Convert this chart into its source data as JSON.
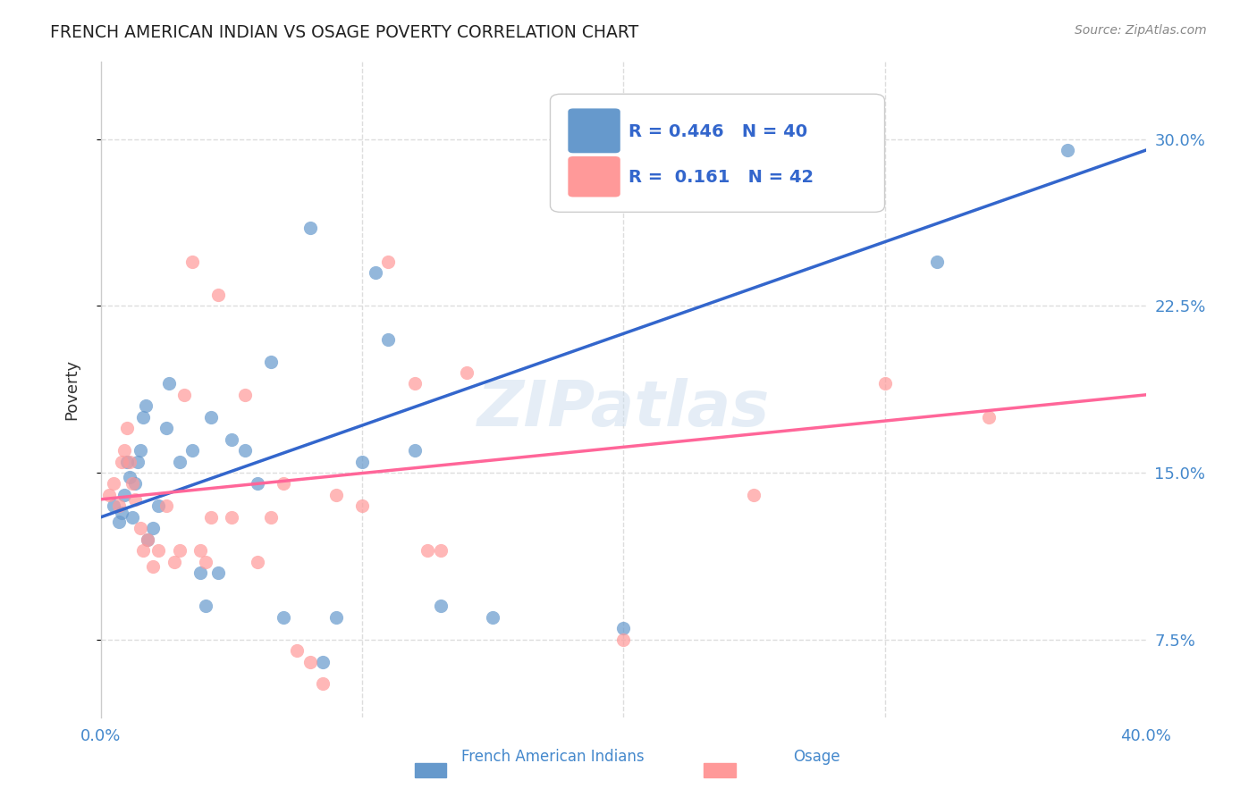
{
  "title": "FRENCH AMERICAN INDIAN VS OSAGE POVERTY CORRELATION CHART",
  "source": "Source: ZipAtlas.com",
  "ylabel": "Poverty",
  "xlim": [
    0.0,
    0.4
  ],
  "ylim": [
    0.04,
    0.335
  ],
  "yticks": [
    0.075,
    0.15,
    0.225,
    0.3
  ],
  "ytick_labels": [
    "7.5%",
    "15.0%",
    "22.5%",
    "30.0%"
  ],
  "legend_r_blue": "0.446",
  "legend_n_blue": "40",
  "legend_r_pink": "0.161",
  "legend_n_pink": "42",
  "legend_label_blue": "French American Indians",
  "legend_label_pink": "Osage",
  "blue_color": "#6699CC",
  "pink_color": "#FF9999",
  "line_blue": "#3366CC",
  "line_pink": "#FF6699",
  "watermark": "ZIPatlas",
  "blue_points": [
    [
      0.005,
      0.135
    ],
    [
      0.007,
      0.128
    ],
    [
      0.008,
      0.132
    ],
    [
      0.009,
      0.14
    ],
    [
      0.01,
      0.155
    ],
    [
      0.011,
      0.148
    ],
    [
      0.012,
      0.13
    ],
    [
      0.013,
      0.145
    ],
    [
      0.014,
      0.155
    ],
    [
      0.015,
      0.16
    ],
    [
      0.016,
      0.175
    ],
    [
      0.017,
      0.18
    ],
    [
      0.018,
      0.12
    ],
    [
      0.02,
      0.125
    ],
    [
      0.022,
      0.135
    ],
    [
      0.025,
      0.17
    ],
    [
      0.026,
      0.19
    ],
    [
      0.03,
      0.155
    ],
    [
      0.035,
      0.16
    ],
    [
      0.038,
      0.105
    ],
    [
      0.04,
      0.09
    ],
    [
      0.042,
      0.175
    ],
    [
      0.045,
      0.105
    ],
    [
      0.05,
      0.165
    ],
    [
      0.055,
      0.16
    ],
    [
      0.06,
      0.145
    ],
    [
      0.065,
      0.2
    ],
    [
      0.07,
      0.085
    ],
    [
      0.08,
      0.26
    ],
    [
      0.085,
      0.065
    ],
    [
      0.09,
      0.085
    ],
    [
      0.1,
      0.155
    ],
    [
      0.105,
      0.24
    ],
    [
      0.11,
      0.21
    ],
    [
      0.12,
      0.16
    ],
    [
      0.13,
      0.09
    ],
    [
      0.15,
      0.085
    ],
    [
      0.2,
      0.08
    ],
    [
      0.32,
      0.245
    ],
    [
      0.37,
      0.295
    ]
  ],
  "pink_points": [
    [
      0.003,
      0.14
    ],
    [
      0.005,
      0.145
    ],
    [
      0.007,
      0.135
    ],
    [
      0.008,
      0.155
    ],
    [
      0.009,
      0.16
    ],
    [
      0.01,
      0.17
    ],
    [
      0.011,
      0.155
    ],
    [
      0.012,
      0.145
    ],
    [
      0.013,
      0.138
    ],
    [
      0.015,
      0.125
    ],
    [
      0.016,
      0.115
    ],
    [
      0.018,
      0.12
    ],
    [
      0.02,
      0.108
    ],
    [
      0.022,
      0.115
    ],
    [
      0.025,
      0.135
    ],
    [
      0.028,
      0.11
    ],
    [
      0.03,
      0.115
    ],
    [
      0.032,
      0.185
    ],
    [
      0.035,
      0.245
    ],
    [
      0.038,
      0.115
    ],
    [
      0.04,
      0.11
    ],
    [
      0.042,
      0.13
    ],
    [
      0.045,
      0.23
    ],
    [
      0.05,
      0.13
    ],
    [
      0.055,
      0.185
    ],
    [
      0.06,
      0.11
    ],
    [
      0.065,
      0.13
    ],
    [
      0.07,
      0.145
    ],
    [
      0.075,
      0.07
    ],
    [
      0.08,
      0.065
    ],
    [
      0.085,
      0.055
    ],
    [
      0.09,
      0.14
    ],
    [
      0.1,
      0.135
    ],
    [
      0.11,
      0.245
    ],
    [
      0.12,
      0.19
    ],
    [
      0.125,
      0.115
    ],
    [
      0.13,
      0.115
    ],
    [
      0.14,
      0.195
    ],
    [
      0.2,
      0.075
    ],
    [
      0.25,
      0.14
    ],
    [
      0.3,
      0.19
    ],
    [
      0.34,
      0.175
    ]
  ],
  "blue_line_x": [
    0.0,
    0.4
  ],
  "blue_line_y": [
    0.13,
    0.295
  ],
  "pink_line_x": [
    0.0,
    0.4
  ],
  "pink_line_y": [
    0.138,
    0.185
  ],
  "background_color": "#FFFFFF",
  "grid_color": "#DDDDDD",
  "title_color": "#222222",
  "axis_label_color": "#4488CC"
}
